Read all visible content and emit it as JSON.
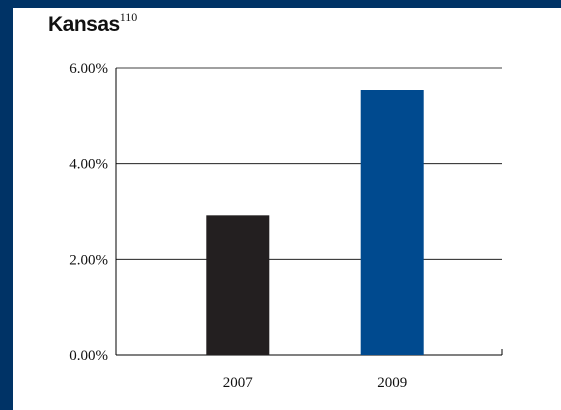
{
  "colors": {
    "frame": "#003366",
    "panel": "#ffffff",
    "bar_2007": "#231f20",
    "bar_2009": "#004a8f",
    "axis": "#000000",
    "grid": "#000000"
  },
  "header": {
    "title": "Kansas",
    "superscript": "110"
  },
  "chart_data": {
    "type": "bar",
    "title": "Kansas",
    "categories": [
      "2007",
      "2009"
    ],
    "values": [
      0.0292,
      0.0554
    ],
    "bar_colors": [
      "#231f20",
      "#004a8f"
    ],
    "xlabel": "",
    "ylabel": "",
    "ylim": [
      0,
      0.06
    ],
    "y_ticks": [
      0,
      0.02,
      0.04,
      0.06
    ],
    "y_tick_labels": [
      "0.00%",
      "2.00%",
      "4.00%",
      "6.00%"
    ],
    "grid": true,
    "legend": false
  }
}
